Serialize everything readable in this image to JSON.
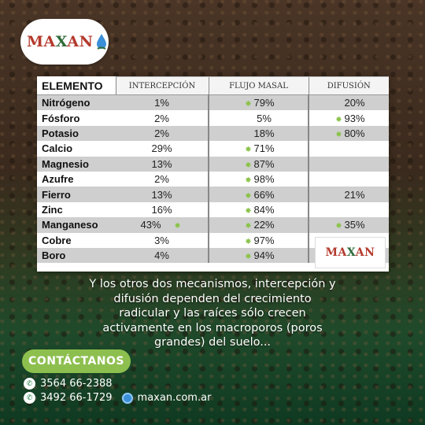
{
  "brand": {
    "name_part1": "MA",
    "name_x": "X",
    "name_part2": "AN",
    "color": "#b43a2d"
  },
  "table": {
    "headers": [
      "ELEMENTO",
      "INTERCEPCIÓN",
      "FLUJO MASAL",
      "DIFUSIÓN"
    ],
    "rows": [
      {
        "name": "Nitrógeno",
        "i": "1%",
        "f": "79%",
        "d": "20%",
        "fs": true,
        "ds": false,
        "is": false
      },
      {
        "name": "Fósforo",
        "i": "2%",
        "f": "5%",
        "d": "93%",
        "fs": false,
        "ds": true,
        "is": false
      },
      {
        "name": "Potasio",
        "i": "2%",
        "f": "18%",
        "d": "80%",
        "fs": false,
        "ds": true,
        "is": false
      },
      {
        "name": "Calcio",
        "i": "29%",
        "f": "71%",
        "d": "",
        "fs": true,
        "ds": false,
        "is": false
      },
      {
        "name": "Magnesio",
        "i": "13%",
        "f": "87%",
        "d": "",
        "fs": true,
        "ds": false,
        "is": false
      },
      {
        "name": "Azufre",
        "i": "2%",
        "f": "98%",
        "d": "",
        "fs": true,
        "ds": false,
        "is": false
      },
      {
        "name": "Fierro",
        "i": "13%",
        "f": "66%",
        "d": "21%",
        "fs": true,
        "ds": false,
        "is": false
      },
      {
        "name": "Zinc",
        "i": "16%",
        "f": "84%",
        "d": "",
        "fs": true,
        "ds": false,
        "is": false
      },
      {
        "name": "Manganeso",
        "i": "43%",
        "f": "22%",
        "d": "35%",
        "fs": true,
        "ds": true,
        "is": true
      },
      {
        "name": "Cobre",
        "i": "3%",
        "f": "97%",
        "d": "",
        "fs": true,
        "ds": false,
        "is": false
      },
      {
        "name": "Boro",
        "i": "4%",
        "f": "94%",
        "d": "",
        "fs": true,
        "ds": false,
        "is": false
      }
    ]
  },
  "caption": {
    "lines": [
      "Y los otros dos mecanismos, intercepción y",
      "difusión dependen del crecimiento",
      "radicular y las raíces sólo crecen",
      "activamente en los macroporos (poros",
      "grandes) del suelo..."
    ]
  },
  "cta": {
    "label": "CONTÁCTANOS"
  },
  "contacts": {
    "phone1": "3564 66-2388",
    "phone2": "3492 66-1729",
    "website": "maxan.com.ar"
  },
  "icons": {
    "whatsapp": "whatsapp-icon",
    "globe": "globe-icon",
    "star": "star-icon"
  }
}
